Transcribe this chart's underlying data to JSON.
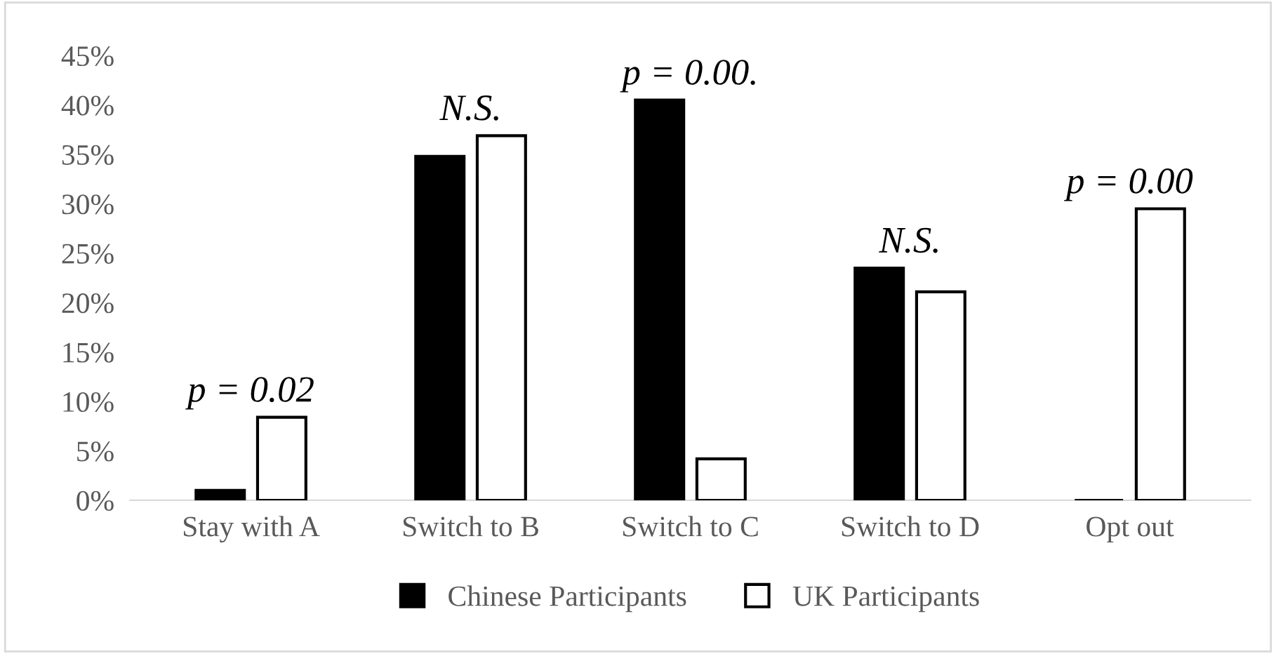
{
  "chart_data": {
    "type": "bar",
    "categories": [
      "Stay with A",
      "Switch to B",
      "Switch to C",
      "Switch to D",
      "Opt out"
    ],
    "series": [
      {
        "name": "Chinese Participants",
        "color": "#000000",
        "values": [
          1.0,
          34.8,
          40.5,
          23.5,
          0
        ]
      },
      {
        "name": "UK Participants",
        "color": "#ffffff",
        "values": [
          8.4,
          36.9,
          4.2,
          21.1,
          29.5
        ]
      }
    ],
    "ylim": [
      0,
      45
    ],
    "yticks": [
      {
        "value": 0,
        "label": "0%"
      },
      {
        "value": 5,
        "label": "5%"
      },
      {
        "value": 10,
        "label": "10%"
      },
      {
        "value": 15,
        "label": "15%"
      },
      {
        "value": 20,
        "label": "20%"
      },
      {
        "value": 25,
        "label": "25%"
      },
      {
        "value": 30,
        "label": "30%"
      },
      {
        "value": 35,
        "label": "35%"
      },
      {
        "value": 40,
        "label": "40%"
      },
      {
        "value": 45,
        "label": "45%"
      }
    ],
    "annotations": [
      "p = 0.02",
      "N.S.",
      "p = 0.00.",
      "N.S.",
      "p = 0.00"
    ],
    "grid": false,
    "legend": "bottom"
  }
}
